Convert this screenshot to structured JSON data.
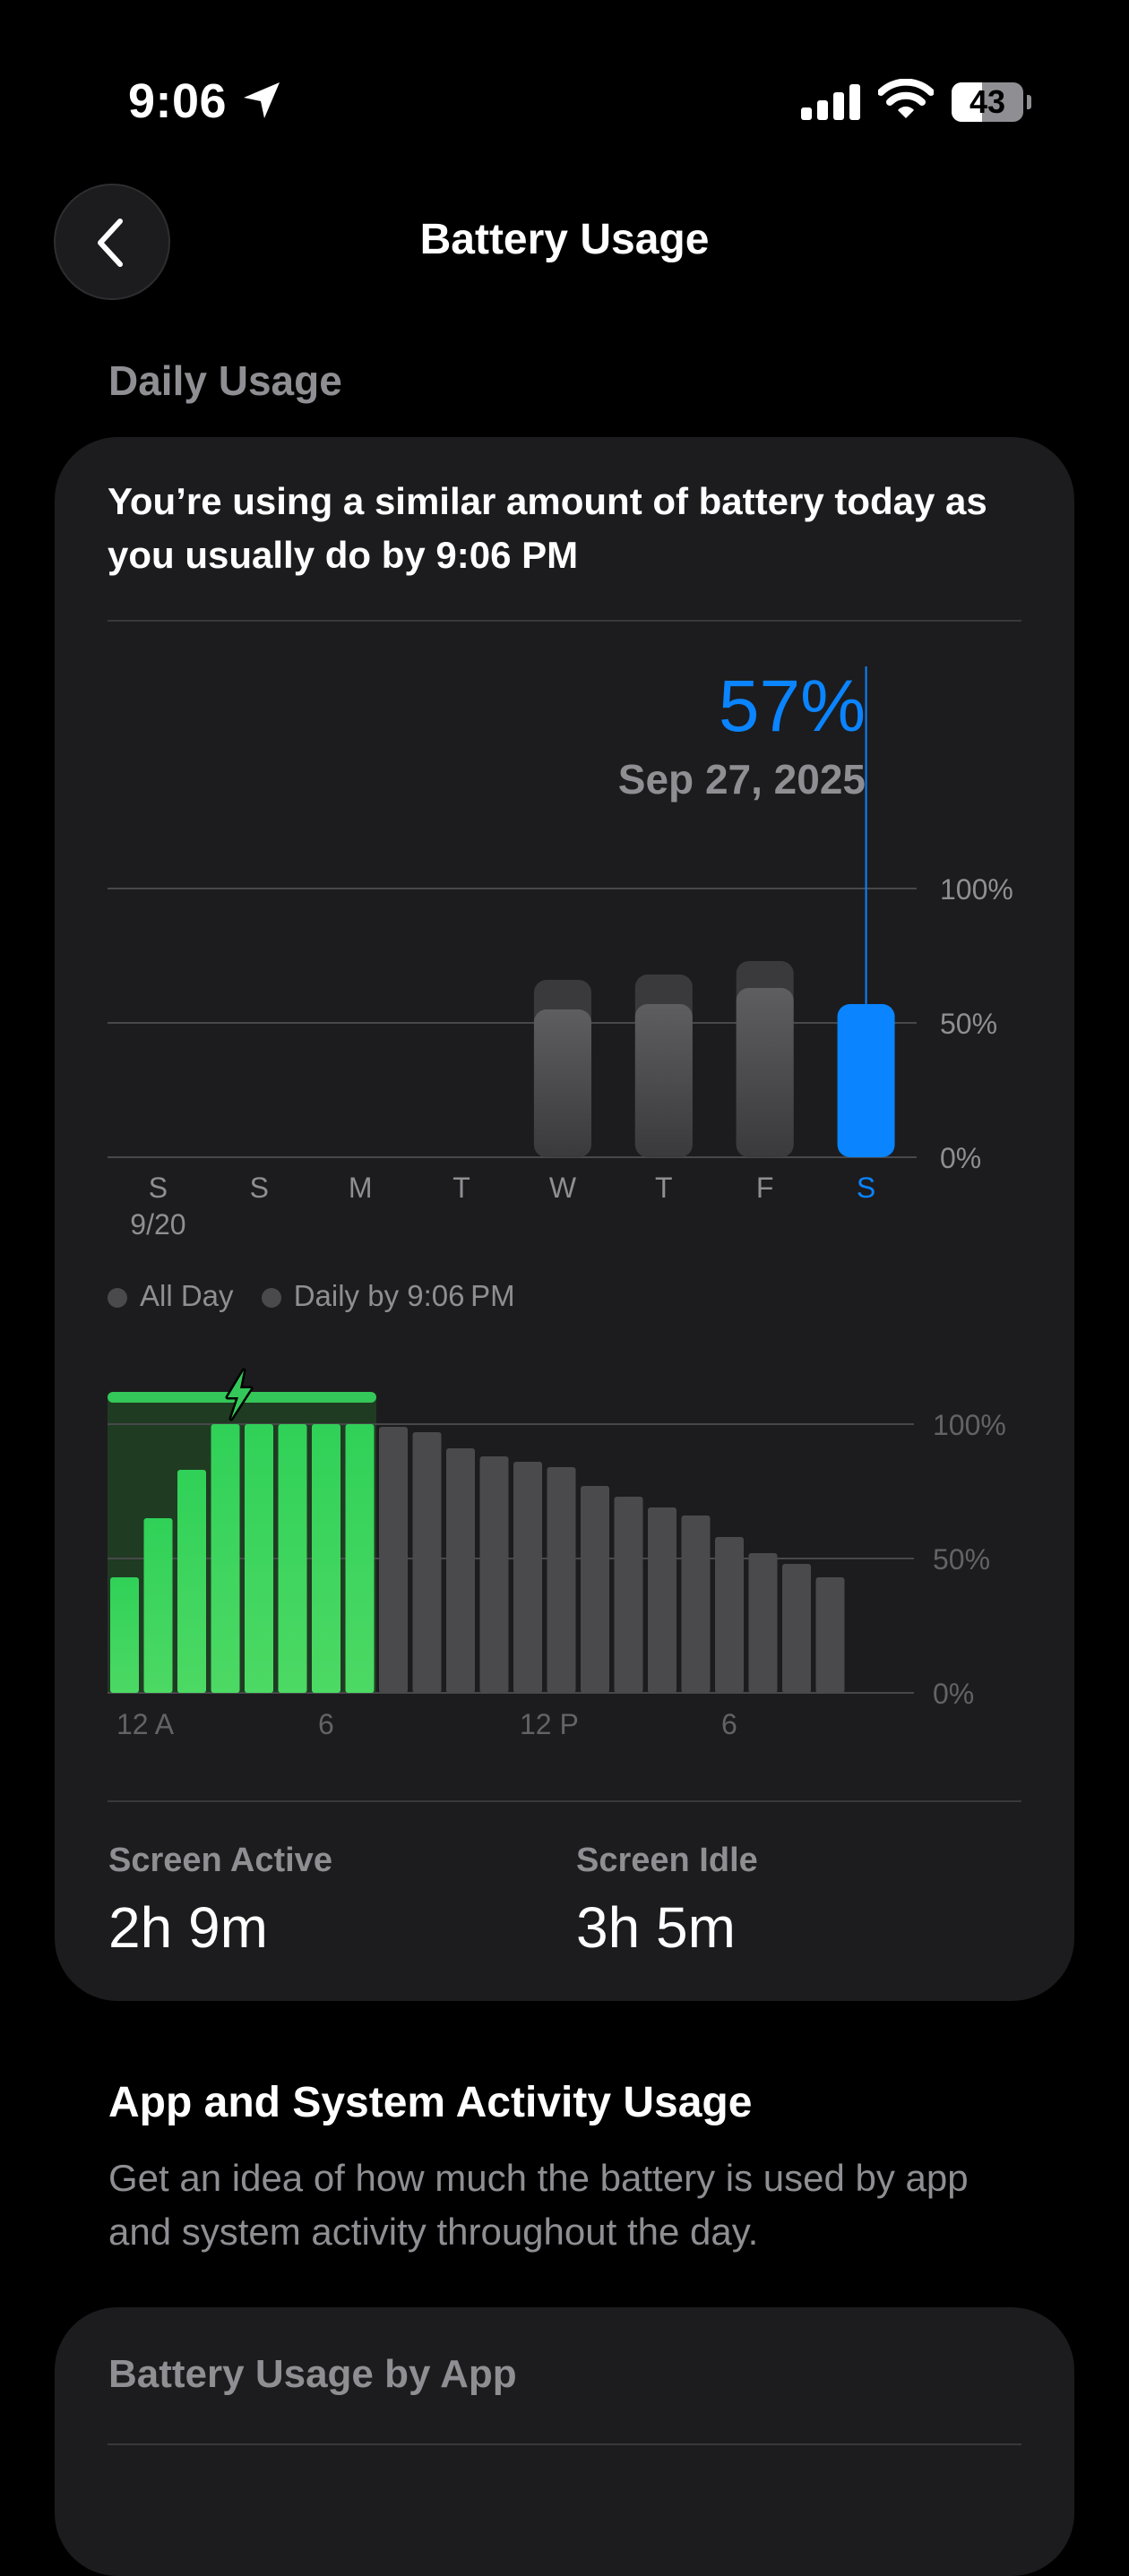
{
  "status_bar": {
    "time": "9:06",
    "battery_level": "43"
  },
  "nav": {
    "title": "Battery Usage"
  },
  "daily_usage": {
    "header": "Daily Usage",
    "summary": "You’re using a similar amount of battery today as you usually do by 9:06 PM",
    "selected": {
      "value": "57%",
      "date": "Sep 27, 2025"
    },
    "legend": [
      "All Day",
      "Daily by 9:06 PM"
    ],
    "screen_active": {
      "label": "Screen Active",
      "value": "2h 9m"
    },
    "screen_idle": {
      "label": "Screen Idle",
      "value": "3h 5m"
    }
  },
  "activity": {
    "title": "App and System Activity Usage",
    "description": "Get an idea of how much the battery is used by app and system activity throughout the day.",
    "card_title": "Battery Usage by App"
  },
  "colors": {
    "accent": "#0a84ff",
    "charging": "#34c759",
    "bar_gray": "#4a4a4c",
    "background": "#000000",
    "card": "#1c1c1e"
  },
  "chart_data": [
    {
      "type": "bar",
      "categories": [
        "S",
        "S",
        "M",
        "T",
        "W",
        "T",
        "F",
        "S"
      ],
      "sub_labels": [
        "9/20",
        "",
        "",
        "",
        "",
        "",
        "",
        ""
      ],
      "series": [
        {
          "name": "All Day",
          "values": [
            null,
            null,
            null,
            null,
            66,
            68,
            73,
            null
          ]
        },
        {
          "name": "Daily by 9:06 PM",
          "values": [
            null,
            null,
            null,
            null,
            55,
            57,
            63,
            57
          ]
        }
      ],
      "selected_index": 7,
      "y_ticks": [
        "100%",
        "50%",
        "0%"
      ],
      "ylim": [
        0,
        100
      ]
    },
    {
      "type": "bar",
      "x_labels": [
        "12 A",
        "6",
        "12 P",
        "6"
      ],
      "x_label_positions": [
        0,
        6,
        12,
        18
      ],
      "values": [
        43,
        65,
        83,
        100,
        100,
        100,
        100,
        100,
        99,
        97,
        91,
        88,
        86,
        84,
        77,
        73,
        69,
        66,
        58,
        52,
        48,
        43
      ],
      "charging_hours": [
        0,
        1,
        2,
        3,
        4,
        5,
        6,
        7
      ],
      "y_ticks": [
        "100%",
        "50%",
        "0%"
      ],
      "ylim": [
        0,
        100
      ]
    }
  ]
}
